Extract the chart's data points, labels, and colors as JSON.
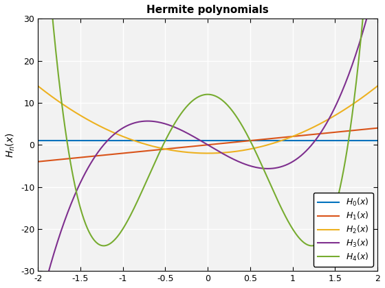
{
  "title": "Hermite polynomials",
  "ylabel": "H_n(x)",
  "xlim": [
    -2,
    2
  ],
  "ylim": [
    -30,
    30
  ],
  "grid": true,
  "lines": [
    {
      "label": "H_0(x)",
      "color": "#0072BD",
      "lw": 1.5
    },
    {
      "label": "H_1(x)",
      "color": "#D95319",
      "lw": 1.5
    },
    {
      "label": "H_2(x)",
      "color": "#EDB120",
      "lw": 1.5
    },
    {
      "label": "H_3(x)",
      "color": "#7E2F8E",
      "lw": 1.5
    },
    {
      "label": "H_4(x)",
      "color": "#77AC30",
      "lw": 1.5
    }
  ],
  "xticks": [
    -2,
    -1.5,
    -1,
    -0.5,
    0,
    0.5,
    1,
    1.5,
    2
  ],
  "yticks": [
    -30,
    -20,
    -10,
    0,
    10,
    20,
    30
  ],
  "n_points": 400,
  "bg_color": "#f2f2f2",
  "grid_color": "#ffffff",
  "grid_lw": 1.0
}
